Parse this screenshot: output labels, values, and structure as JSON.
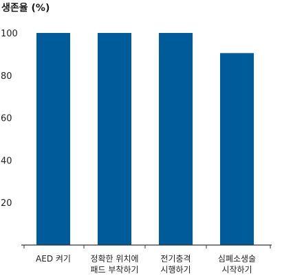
{
  "chart_data": {
    "type": "bar",
    "title": "생존율 (%)",
    "xlabel": "",
    "ylabel": "",
    "categories": [
      [
        "AED 켜기"
      ],
      [
        "정확한 위치에",
        "패드 부착하기"
      ],
      [
        "전기충격",
        "시행하기"
      ],
      [
        "심폐소생술",
        "시작하기"
      ]
    ],
    "values": [
      100,
      100,
      100,
      90.5
    ],
    "ylim": [
      0,
      100
    ],
    "yticks": [
      "100",
      "80",
      "60",
      "40",
      "20"
    ],
    "bar_color": "#005b9a",
    "grid": false
  }
}
